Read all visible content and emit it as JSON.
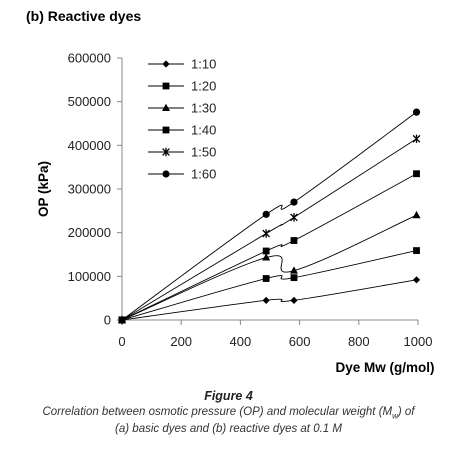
{
  "panel_title": "(b) Reactive dyes",
  "caption": {
    "figure_title": "Figure 4",
    "line1_before_sub": "Correlation between osmotic pressure (OP) and molecular weight (M",
    "line1_sub": "w",
    "line1_after_sub": ") of",
    "line2": "(a) basic dyes and (b) reactive dyes at 0.1 M"
  },
  "chart_data": {
    "type": "line",
    "title": "(b) Reactive dyes",
    "xlabel": "Dye Mw (g/mol)",
    "ylabel": "OP (kPa)",
    "xlim": [
      0,
      1000
    ],
    "ylim": [
      0,
      600000
    ],
    "x_ticks": [
      0,
      200,
      400,
      600,
      800,
      1000
    ],
    "y_ticks": [
      0,
      100000,
      200000,
      300000,
      400000,
      500000,
      600000
    ],
    "x_tick_labels": [
      "0",
      "200",
      "400",
      "600",
      "800",
      "1000"
    ],
    "y_tick_labels": [
      "0",
      "100000",
      "200000",
      "300000",
      "400000",
      "500000",
      "600000"
    ],
    "grid": false,
    "legend_position": "top-left",
    "series": [
      {
        "name": "1:10",
        "marker": "diamond",
        "x": [
          0,
          487,
          581,
          995
        ],
        "y": [
          0,
          45000,
          45000,
          92000
        ]
      },
      {
        "name": "1:20",
        "marker": "square",
        "x": [
          0,
          487,
          581,
          995
        ],
        "y": [
          0,
          95000,
          97000,
          159000
        ]
      },
      {
        "name": "1:30",
        "marker": "triangle",
        "x": [
          0,
          487,
          581,
          995
        ],
        "y": [
          0,
          143000,
          113000,
          240000
        ]
      },
      {
        "name": "1:40",
        "marker": "square",
        "x": [
          0,
          487,
          581,
          995
        ],
        "y": [
          0,
          158000,
          182000,
          335000
        ]
      },
      {
        "name": "1:50",
        "marker": "star",
        "x": [
          0,
          487,
          581,
          995
        ],
        "y": [
          0,
          198000,
          235000,
          415000
        ]
      },
      {
        "name": "1:60",
        "marker": "circle",
        "x": [
          0,
          487,
          581,
          995
        ],
        "y": [
          0,
          242000,
          270000,
          476000
        ]
      }
    ]
  }
}
